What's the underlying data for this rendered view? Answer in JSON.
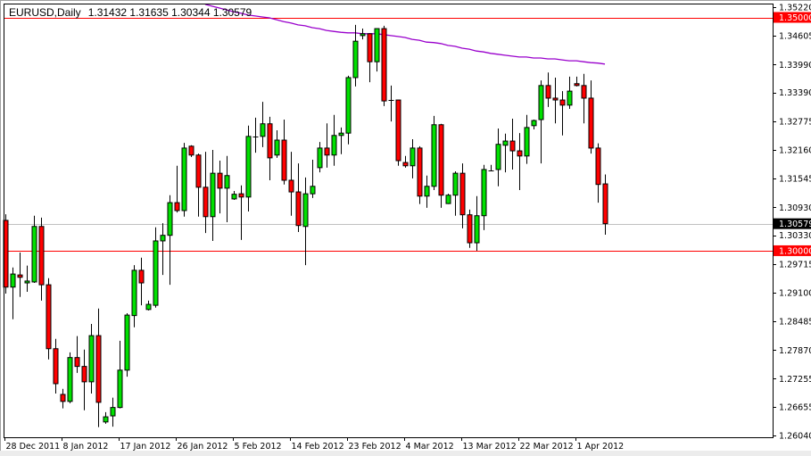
{
  "header": {
    "symbol_timeframe": "EURUSD,Daily",
    "ohlc_readout": "1.31432 1.31635 1.30344 1.30579"
  },
  "colors": {
    "background": "#ffffff",
    "bull_candle": "#00e000",
    "bear_candle": "#ff0000",
    "candle_outline": "#000000",
    "moving_average": "#9900cc",
    "level_line": "#ff0000",
    "bid_line": "#c0c0c0",
    "bid_badge": "#000000"
  },
  "chart_data": {
    "type": "candlestick",
    "title": "EURUSD,Daily",
    "xlabel": "",
    "ylabel": "",
    "ylim": [
      1.2604,
      1.3522
    ],
    "grid": false,
    "price_ticks": [
      "1.35220",
      "1.34605",
      "1.33990",
      "1.33390",
      "1.32775",
      "1.32160",
      "1.31545",
      "1.30930",
      "1.30330",
      "1.29715",
      "1.29100",
      "1.28485",
      "1.27870",
      "1.27255",
      "1.26655",
      "1.26040"
    ],
    "date_ticks": [
      {
        "bar": 0,
        "label": "28 Dec 2011"
      },
      {
        "bar": 8,
        "label": "8 Jan 2012"
      },
      {
        "bar": 16,
        "label": "17 Jan 2012"
      },
      {
        "bar": 24,
        "label": "26 Jan 2012"
      },
      {
        "bar": 32,
        "label": "5 Feb 2012"
      },
      {
        "bar": 40,
        "label": "14 Feb 2012"
      },
      {
        "bar": 48,
        "label": "23 Feb 2012"
      },
      {
        "bar": 56,
        "label": "4 Mar 2012"
      },
      {
        "bar": 64,
        "label": "13 Mar 2012"
      },
      {
        "bar": 72,
        "label": "22 Mar 2012"
      },
      {
        "bar": 80,
        "label": "1 Apr 2012"
      }
    ],
    "horizontal_levels": [
      {
        "price": 1.35,
        "label": "1.35000",
        "style": "level"
      },
      {
        "price": 1.3,
        "label": "1.30000",
        "style": "level"
      },
      {
        "price": 1.30579,
        "label": "1.30579",
        "style": "bid"
      }
    ],
    "ohlc_fields": [
      "open",
      "high",
      "low",
      "close"
    ],
    "ohlc": [
      [
        1.3065,
        1.3078,
        1.2908,
        1.2922
      ],
      [
        1.2922,
        1.2964,
        1.2853,
        1.295
      ],
      [
        1.2948,
        1.2996,
        1.2901,
        1.2943
      ],
      [
        1.2931,
        1.2968,
        1.2912,
        1.2935
      ],
      [
        1.2933,
        1.3075,
        1.2931,
        1.3052
      ],
      [
        1.3052,
        1.3071,
        1.2893,
        1.2927
      ],
      [
        1.2927,
        1.2941,
        1.2767,
        1.279
      ],
      [
        1.279,
        1.2811,
        1.2694,
        1.2715
      ],
      [
        1.2692,
        1.2704,
        1.2662,
        1.2677
      ],
      [
        1.2677,
        1.2782,
        1.2673,
        1.2771
      ],
      [
        1.2771,
        1.2817,
        1.2738,
        1.2752
      ],
      [
        1.2752,
        1.2788,
        1.2658,
        1.2719
      ],
      [
        1.2719,
        1.2843,
        1.2694,
        1.2818
      ],
      [
        1.2818,
        1.2876,
        1.2622,
        1.2675
      ],
      [
        1.2633,
        1.2654,
        1.2629,
        1.2644
      ],
      [
        1.2646,
        1.2685,
        1.2623,
        1.2664
      ],
      [
        1.2664,
        1.2807,
        1.2662,
        1.2744
      ],
      [
        1.2744,
        1.2866,
        1.273,
        1.2862
      ],
      [
        1.2861,
        1.2969,
        1.2836,
        1.2958
      ],
      [
        1.2958,
        1.2985,
        1.2883,
        1.2931
      ],
      [
        1.2874,
        1.2893,
        1.2872,
        1.2885
      ],
      [
        1.2883,
        1.305,
        1.2878,
        1.3021
      ],
      [
        1.3021,
        1.3059,
        1.2948,
        1.3033
      ],
      [
        1.3033,
        1.3119,
        1.2927,
        1.3103
      ],
      [
        1.3103,
        1.3182,
        1.3082,
        1.3086
      ],
      [
        1.3086,
        1.3231,
        1.3073,
        1.322
      ],
      [
        1.3224,
        1.3226,
        1.3201,
        1.3205
      ],
      [
        1.3205,
        1.3208,
        1.3073,
        1.3136
      ],
      [
        1.3136,
        1.3212,
        1.3038,
        1.3073
      ],
      [
        1.3073,
        1.3216,
        1.3021,
        1.3166
      ],
      [
        1.3166,
        1.3193,
        1.308,
        1.3134
      ],
      [
        1.3134,
        1.3203,
        1.3061,
        1.3161
      ],
      [
        1.3111,
        1.3128,
        1.3109,
        1.3121
      ],
      [
        1.3122,
        1.314,
        1.3023,
        1.3115
      ],
      [
        1.3115,
        1.3268,
        1.3084,
        1.3245
      ],
      [
        1.3245,
        1.3285,
        1.321,
        1.3245
      ],
      [
        1.3245,
        1.3319,
        1.3222,
        1.3272
      ],
      [
        1.3272,
        1.3287,
        1.3151,
        1.3199
      ],
      [
        1.3205,
        1.3258,
        1.3199,
        1.3237
      ],
      [
        1.3237,
        1.3281,
        1.3142,
        1.3151
      ],
      [
        1.3151,
        1.3212,
        1.3075,
        1.3126
      ],
      [
        1.3126,
        1.3187,
        1.304,
        1.3054
      ],
      [
        1.3052,
        1.3157,
        1.2969,
        1.3122
      ],
      [
        1.3122,
        1.3195,
        1.3113,
        1.3138
      ],
      [
        1.3178,
        1.3233,
        1.3168,
        1.322
      ],
      [
        1.322,
        1.3273,
        1.3178,
        1.3205
      ],
      [
        1.3205,
        1.3291,
        1.3182,
        1.3247
      ],
      [
        1.3247,
        1.3264,
        1.3207,
        1.3252
      ],
      [
        1.3252,
        1.3375,
        1.3228,
        1.3371
      ],
      [
        1.3371,
        1.3484,
        1.3352,
        1.3449
      ],
      [
        1.3461,
        1.3476,
        1.3453,
        1.3465
      ],
      [
        1.3465,
        1.3466,
        1.3361,
        1.3405
      ],
      [
        1.3405,
        1.3476,
        1.3384,
        1.3476
      ],
      [
        1.3476,
        1.3482,
        1.331,
        1.3321
      ],
      [
        1.3323,
        1.3354,
        1.3277,
        1.3323
      ],
      [
        1.3323,
        1.3323,
        1.3182,
        1.3193
      ],
      [
        1.3189,
        1.3203,
        1.3178,
        1.3182
      ],
      [
        1.3182,
        1.3239,
        1.3155,
        1.322
      ],
      [
        1.322,
        1.3224,
        1.31,
        1.3117
      ],
      [
        1.3117,
        1.3161,
        1.3092,
        1.3138
      ],
      [
        1.3138,
        1.3289,
        1.313,
        1.327
      ],
      [
        1.327,
        1.3272,
        1.3092,
        1.3119
      ],
      [
        1.3101,
        1.3122,
        1.31,
        1.3119
      ],
      [
        1.3119,
        1.317,
        1.3075,
        1.3166
      ],
      [
        1.3166,
        1.3187,
        1.3048,
        1.3077
      ],
      [
        1.3077,
        1.3088,
        1.3006,
        1.3017
      ],
      [
        1.3017,
        1.3117,
        1.3,
        1.3075
      ],
      [
        1.3075,
        1.3184,
        1.3044,
        1.3174
      ],
      [
        1.3172,
        1.3184,
        1.317,
        1.3172
      ],
      [
        1.3174,
        1.3262,
        1.3138,
        1.3228
      ],
      [
        1.3226,
        1.3251,
        1.3168,
        1.3235
      ],
      [
        1.3235,
        1.3283,
        1.3174,
        1.3214
      ],
      [
        1.3214,
        1.3252,
        1.313,
        1.3203
      ],
      [
        1.3203,
        1.3291,
        1.3186,
        1.3264
      ],
      [
        1.3268,
        1.3281,
        1.326,
        1.3279
      ],
      [
        1.3281,
        1.3365,
        1.3187,
        1.3354
      ],
      [
        1.3354,
        1.3382,
        1.3308,
        1.3327
      ],
      [
        1.3327,
        1.3371,
        1.3273,
        1.3323
      ],
      [
        1.3323,
        1.3342,
        1.3247,
        1.3312
      ],
      [
        1.3312,
        1.3373,
        1.3304,
        1.3342
      ],
      [
        1.3358,
        1.3373,
        1.3352,
        1.3354
      ],
      [
        1.3354,
        1.3379,
        1.3273,
        1.3327
      ],
      [
        1.3327,
        1.3365,
        1.3208,
        1.322
      ],
      [
        1.322,
        1.323,
        1.3103,
        1.3142
      ],
      [
        1.31432,
        1.31635,
        1.30344,
        1.30579
      ]
    ],
    "moving_average": {
      "start_bar": 28,
      "values": [
        1.3528,
        1.3524,
        1.352,
        1.3516,
        1.3512,
        1.3509,
        1.3505,
        1.3503,
        1.3501,
        1.3499,
        1.3495,
        1.3491,
        1.3488,
        1.3484,
        1.3482,
        1.3478,
        1.3476,
        1.3472,
        1.347,
        1.3468,
        1.3467,
        1.3467,
        1.3465,
        1.3465,
        1.3465,
        1.3463,
        1.3461,
        1.3459,
        1.3457,
        1.3453,
        1.3451,
        1.3447,
        1.3446,
        1.3444,
        1.344,
        1.3438,
        1.3434,
        1.3432,
        1.3428,
        1.3426,
        1.3423,
        1.3421,
        1.3419,
        1.3417,
        1.3415,
        1.3415,
        1.3413,
        1.3413,
        1.3411,
        1.3411,
        1.3409,
        1.3407,
        1.3407,
        1.3405,
        1.3403,
        1.3402,
        1.34
      ]
    }
  }
}
